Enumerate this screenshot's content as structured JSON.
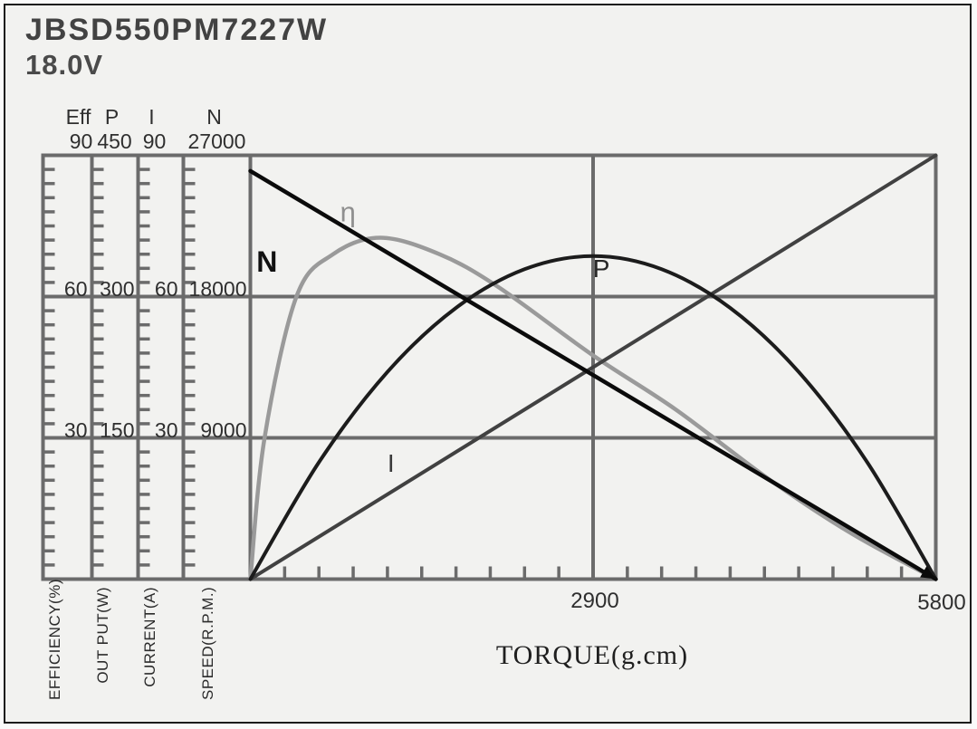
{
  "title": {
    "model": "JBSD550PM7227W",
    "voltage": "18.0V"
  },
  "left_axes": [
    {
      "key": "eff",
      "name": "Eff",
      "max": "90",
      "mid_upper": "60",
      "mid_lower": "30",
      "unit": "EFFICIENCY(%)"
    },
    {
      "key": "p",
      "name": "P",
      "max": "450",
      "mid_upper": "300",
      "mid_lower": "150",
      "unit": "OUT PUT(W)"
    },
    {
      "key": "i",
      "name": "I",
      "max": "90",
      "mid_upper": "60",
      "mid_lower": "30",
      "unit": "CURRENT(A)"
    },
    {
      "key": "n",
      "name": "N",
      "max": "27000",
      "mid_upper": "18000",
      "mid_lower": "9000",
      "unit": "SPEED(R.P.M.)"
    }
  ],
  "x_axis": {
    "label": "TORQUE(g.cm)",
    "mid_tick": "2900",
    "max_tick": "5800"
  },
  "chart_data": {
    "type": "line",
    "title": "JBSD550PM7227W 18.0V motor performance curves",
    "xlabel": "TORQUE(g.cm)",
    "x_range": [
      0,
      5800
    ],
    "x_major_gridline": 2900,
    "x_minor_divisions": 20,
    "grid": "on",
    "y_axes": [
      {
        "name": "EFFICIENCY(%)",
        "range": [
          0,
          90
        ],
        "major_ticks": [
          30,
          60,
          90
        ],
        "minor_divisions": 30
      },
      {
        "name": "OUT PUT(W)",
        "range": [
          0,
          450
        ],
        "major_ticks": [
          150,
          300,
          450
        ],
        "minor_divisions": 30
      },
      {
        "name": "CURRENT(A)",
        "range": [
          0,
          90
        ],
        "major_ticks": [
          30,
          60,
          90
        ],
        "minor_divisions": 30
      },
      {
        "name": "SPEED(R.P.M.)",
        "range": [
          0,
          27000
        ],
        "major_ticks": [
          9000,
          18000,
          27000
        ],
        "minor_divisions": 30
      }
    ],
    "series": [
      {
        "name": "η",
        "axis": "EFFICIENCY(%)",
        "color": "#9a9a9a",
        "width": 4.5,
        "points": [
          [
            0,
            0
          ],
          [
            120,
            30
          ],
          [
            390,
            60
          ],
          [
            700,
            69
          ],
          [
            1100,
            72.5
          ],
          [
            1600,
            69
          ],
          [
            2100,
            62
          ],
          [
            2900,
            47.5
          ],
          [
            3600,
            36
          ],
          [
            4400,
            21
          ],
          [
            5100,
            9.5
          ],
          [
            5800,
            0
          ]
        ]
      },
      {
        "name": "I",
        "axis": "CURRENT(A)",
        "color": "#414141",
        "width": 4,
        "points": [
          [
            0,
            0
          ],
          [
            5800,
            90
          ]
        ]
      },
      {
        "name": "P",
        "axis": "OUT PUT(W)",
        "color": "#1c1c1c",
        "width": 4,
        "points": [
          [
            0,
            0
          ],
          [
            580,
            124
          ],
          [
            1160,
            220
          ],
          [
            1740,
            288
          ],
          [
            2320,
            329
          ],
          [
            2900,
            343
          ],
          [
            3480,
            329
          ],
          [
            4060,
            288
          ],
          [
            4640,
            220
          ],
          [
            5220,
            124
          ],
          [
            5800,
            0
          ]
        ]
      },
      {
        "name": "N",
        "axis": "SPEED(R.P.M.)",
        "color": "#0b0b0b",
        "width": 4.5,
        "arrow_end": true,
        "points": [
          [
            0,
            26000
          ],
          [
            5800,
            0
          ]
        ]
      }
    ],
    "annotations": [
      {
        "id": "eta",
        "text": "η",
        "axis": "EFFICIENCY(%)",
        "at": [
          826,
          78
        ],
        "color": "#8f8f8f",
        "size": 31,
        "bold": false
      },
      {
        "id": "n",
        "text": "N",
        "axis": "SPEED(R.P.M.)",
        "at": [
          140,
          20200
        ],
        "color": "#111111",
        "size": 32,
        "bold": true
      },
      {
        "id": "p",
        "text": "P",
        "axis": "OUT PUT(W)",
        "at": [
          2970,
          329
        ],
        "color": "#262626",
        "size": 28,
        "bold": false
      },
      {
        "id": "i",
        "text": "I",
        "axis": "CURRENT(A)",
        "at": [
          1190,
          24.6
        ],
        "color": "#3a3a3a",
        "size": 28,
        "bold": false
      }
    ]
  }
}
